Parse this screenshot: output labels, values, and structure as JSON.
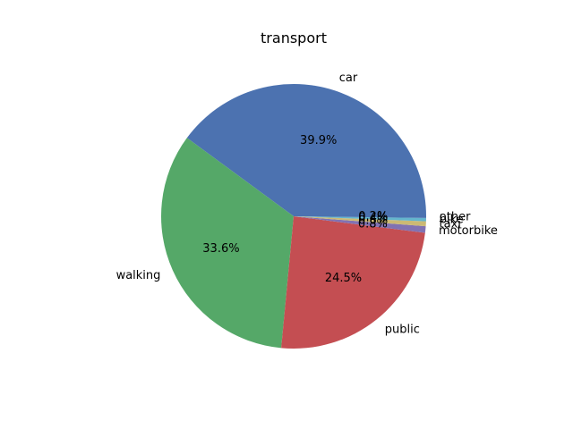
{
  "chart_data": {
    "type": "pie",
    "title": "transport",
    "slices": [
      {
        "label": "car",
        "value": 39.9,
        "pct_label": "39.9%",
        "color": "#4c72b0"
      },
      {
        "label": "walking",
        "value": 33.6,
        "pct_label": "33.6%",
        "color": "#55a868"
      },
      {
        "label": "public",
        "value": 24.5,
        "pct_label": "24.5%",
        "color": "#c44e52"
      },
      {
        "label": "motorbike",
        "value": 0.8,
        "pct_label": "0.8%",
        "color": "#8172b2"
      },
      {
        "label": "taxi",
        "value": 0.6,
        "pct_label": "0.6%",
        "color": "#ccb974"
      },
      {
        "label": "bike",
        "value": 0.4,
        "pct_label": "0.4%",
        "color": "#64b5cd"
      },
      {
        "label": "other",
        "value": 0.2,
        "pct_label": "0.2%",
        "color": "#4c72b0"
      }
    ],
    "start_angle_deg": 0,
    "direction": "counterclockwise",
    "legend": "none"
  }
}
